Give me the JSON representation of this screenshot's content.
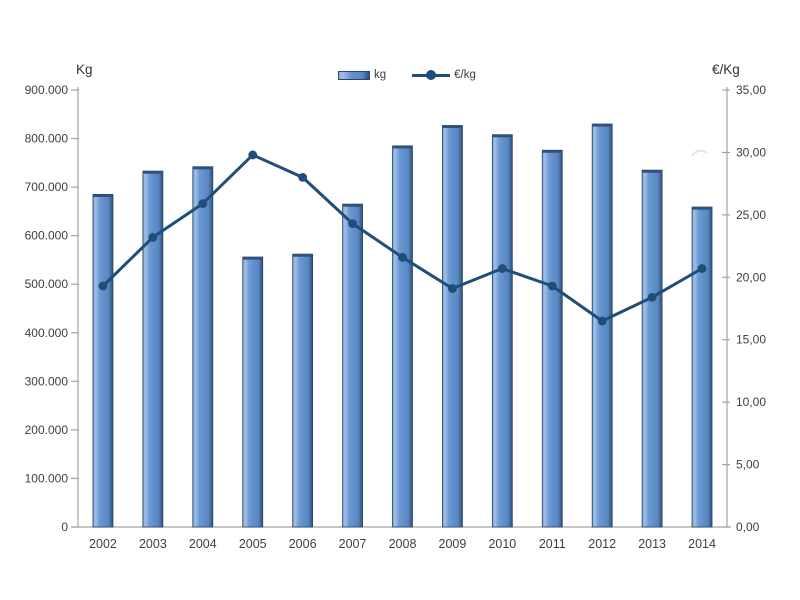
{
  "chart_data": {
    "type": "bar",
    "subtype": "combo-bar-line-dual-axis",
    "title": "",
    "categories": [
      "2002",
      "2003",
      "2004",
      "2005",
      "2006",
      "2007",
      "2008",
      "2009",
      "2010",
      "2011",
      "2012",
      "2013",
      "2014"
    ],
    "series": [
      {
        "name": "kg",
        "type": "bar",
        "axis": "left",
        "values": [
          685000,
          733000,
          742000,
          556000,
          562000,
          665000,
          785000,
          827000,
          808000,
          776000,
          830000,
          735000,
          659000
        ]
      },
      {
        "name": "€/kg",
        "type": "line",
        "axis": "right",
        "values": [
          19.3,
          23.2,
          25.9,
          29.8,
          28.0,
          24.3,
          21.6,
          19.1,
          20.7,
          19.3,
          16.5,
          18.4,
          20.7
        ]
      }
    ],
    "legend_labels": [
      "kg",
      "€/kg"
    ],
    "legend_position": "top-center",
    "grid": "off",
    "left_axis": {
      "title": "Kg",
      "min": 0,
      "max": 900000,
      "tick_step": 100000,
      "tick_labels_top_to_bottom": [
        "900.000",
        "800.000",
        "700.000",
        "600.000",
        "500.000",
        "400.000",
        "300.000",
        "200.000",
        "100.000",
        "0"
      ]
    },
    "right_axis": {
      "title": "€/Kg",
      "min": 0,
      "max": 35,
      "tick_step": 5,
      "tick_labels_top_to_bottom": [
        "35,00",
        "30,00",
        "25,00",
        "20,00",
        "15,00",
        "10,00",
        "5,00",
        "0,00"
      ]
    },
    "colors": {
      "bar_fill": "#6090cb",
      "bar_highlight": "#9dbfe7",
      "bar_dark_edge": "#2e4f79",
      "bar_outline": "#2b4668",
      "line": "#1f4e79",
      "axis_line": "#a3a3a3",
      "text": "#3f3f3f"
    }
  }
}
